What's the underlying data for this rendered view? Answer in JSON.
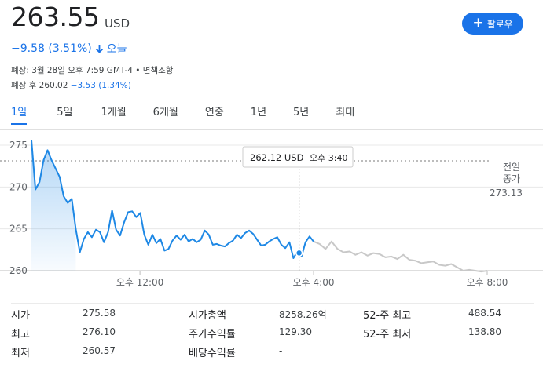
{
  "quote": {
    "price": "263.55",
    "currency": "USD",
    "change": "−9.58 (3.51%)",
    "change_period": "오늘",
    "close_info": "폐장: 3월 28일 오후 7:59 GMT-4 • 면책조항",
    "after_label": "폐장 후 ",
    "after_price": "260.02",
    "after_change": "−3.53 (1.34%)"
  },
  "follow_button": {
    "label": "팔로우"
  },
  "colors": {
    "accent": "#1a73e8",
    "line": "#1e88e5",
    "after_hours_line": "#c8c8c8"
  },
  "tabs": [
    {
      "label": "1일",
      "active": true
    },
    {
      "label": "5일"
    },
    {
      "label": "1개월"
    },
    {
      "label": "6개월"
    },
    {
      "label": "연중"
    },
    {
      "label": "1년"
    },
    {
      "label": "5년"
    },
    {
      "label": "최대"
    }
  ],
  "tooltip": {
    "price": "262.12 USD",
    "time": "오후 3:40"
  },
  "prev_close": {
    "label_line1": "전일",
    "label_line2": "종가",
    "value": "273.13"
  },
  "chart_data": {
    "type": "line",
    "ylim": [
      260,
      276
    ],
    "y_ticks": [
      "275",
      "270",
      "265",
      "260"
    ],
    "x_ticks": [
      "오후 12:00",
      "오후 4:00",
      "오후 8:00"
    ],
    "prev_close": 273.13,
    "regular_session": [
      275.6,
      269.7,
      270.6,
      273.2,
      274.4,
      273.2,
      272.2,
      271.2,
      268.9,
      268.1,
      268.6,
      265.0,
      262.2,
      263.8,
      264.6,
      264.0,
      264.9,
      264.6,
      263.4,
      264.6,
      267.2,
      264.9,
      264.2,
      265.8,
      267.0,
      267.1,
      266.4,
      266.9,
      264.3,
      263.1,
      264.3,
      263.3,
      263.8,
      262.4,
      262.6,
      263.6,
      264.2,
      263.7,
      264.3,
      263.5,
      263.8,
      263.4,
      263.7,
      264.8,
      264.3,
      263.1,
      263.2,
      263.0,
      262.9,
      263.3,
      263.6,
      264.3,
      263.9,
      264.5,
      264.8,
      264.4,
      263.7,
      263.0,
      263.1,
      263.5,
      263.8,
      264.0,
      263.1,
      262.7,
      263.4,
      261.5,
      262.3,
      261.7,
      263.4,
      264.1,
      263.5
    ],
    "after_hours": [
      263.5,
      263.2,
      262.6,
      263.5,
      262.6,
      262.2,
      262.3,
      261.9,
      262.2,
      261.8,
      262.1,
      262.0,
      261.6,
      261.7,
      261.4,
      261.9,
      261.3,
      261.2,
      260.9,
      261.0,
      261.1,
      260.7,
      260.6,
      260.8,
      260.4,
      260.0,
      260.1,
      260.0,
      259.9,
      260.0
    ]
  },
  "stats": [
    {
      "label": "시가",
      "value": "275.58"
    },
    {
      "label": "최고",
      "value": "276.10"
    },
    {
      "label": "최저",
      "value": "260.57"
    },
    {
      "label": "시가총액",
      "value": "8258.26억"
    },
    {
      "label": "주가수익률",
      "value": "129.30"
    },
    {
      "label": "배당수익률",
      "value": "-"
    },
    {
      "label": "52-주 최고",
      "value": "488.54"
    },
    {
      "label": "52-주 최저",
      "value": "138.80"
    }
  ]
}
